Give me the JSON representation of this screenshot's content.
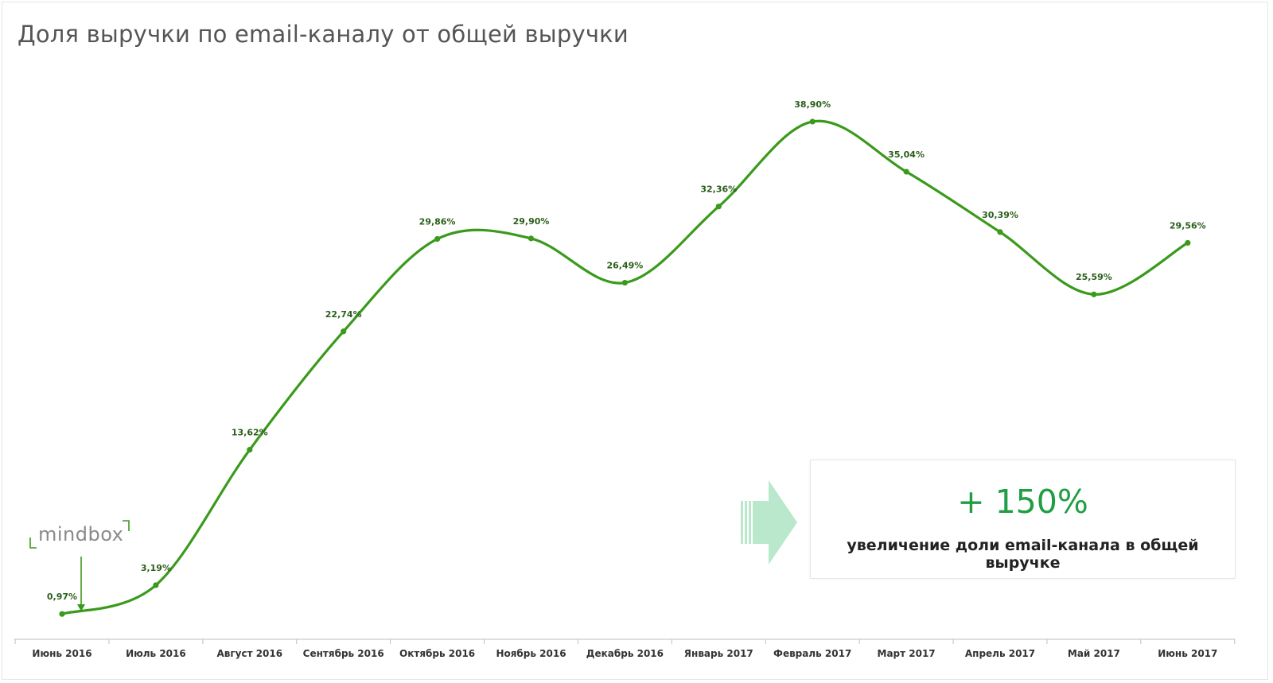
{
  "title": "Доля выручки по email-каналу от общей выручки",
  "chart_data": {
    "type": "line",
    "title": "Доля выручки по email-каналу от общей выручки",
    "categories": [
      "Июнь 2016",
      "Июль 2016",
      "Август 2016",
      "Сентябрь 2016",
      "Октябрь 2016",
      "Ноябрь 2016",
      "Декабрь 2016",
      "Январь 2017",
      "Февраль 2017",
      "Март 2017",
      "Апрель 2017",
      "Май 2017",
      "Июнь 2017"
    ],
    "values": [
      0.97,
      3.19,
      13.62,
      22.74,
      29.86,
      29.9,
      26.49,
      32.36,
      38.9,
      35.04,
      30.39,
      25.59,
      29.56
    ],
    "data_labels": [
      "0,97%",
      "3,19%",
      "13,62%",
      "22,74%",
      "29,86%",
      "29,90%",
      "26,49%",
      "32,36%",
      "38,90%",
      "35,04%",
      "30,39%",
      "25,59%",
      "29,56%"
    ],
    "xlabel": "",
    "ylabel": "",
    "ylim": [
      0,
      40
    ],
    "grid": false,
    "legend": "none",
    "line_color": "#3a9a1c",
    "label_color": "#2b5e1a"
  },
  "callout": {
    "value": "+ 150%",
    "text": "увеличение доли email-канала в общей выручке",
    "value_color": "#1f9e43",
    "arrow_color": "#b9e8cc"
  },
  "logo": {
    "text": "mindbox",
    "color": "#3a9a1c"
  }
}
